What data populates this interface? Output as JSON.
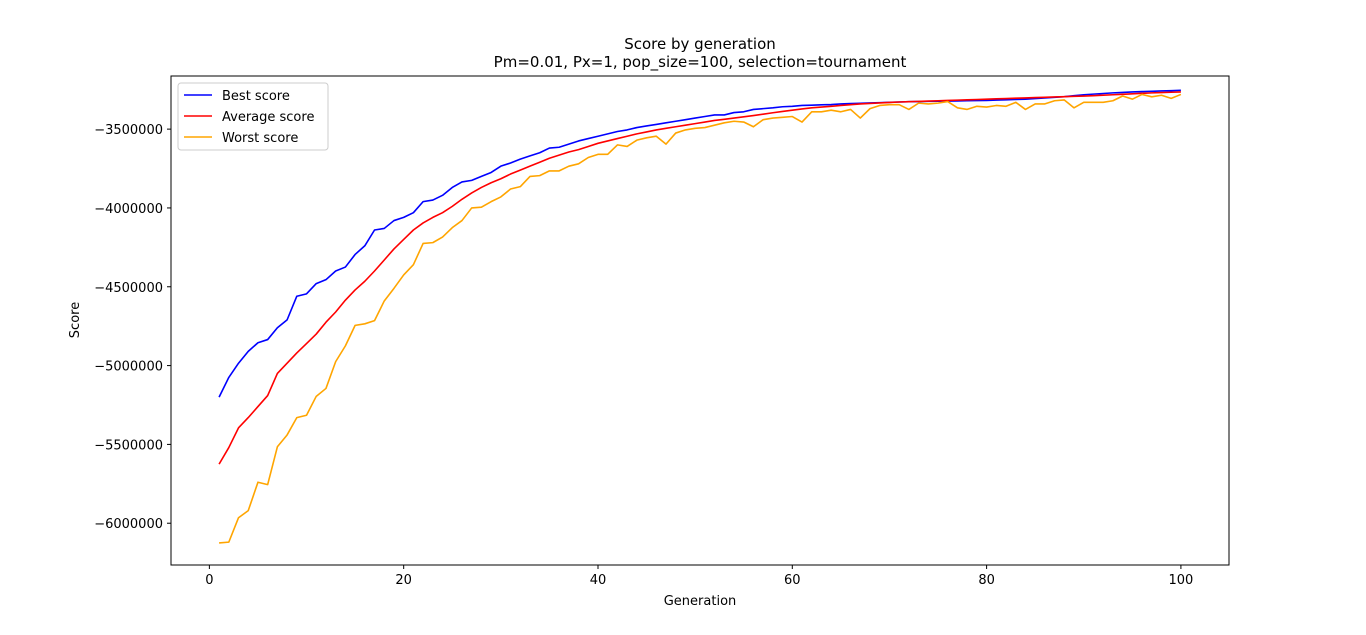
{
  "chart_data": {
    "type": "line",
    "title": "Score by generation",
    "subtitle": "Pm=0.01, Px=1, pop_size=100, selection=tournament",
    "xlabel": "Generation",
    "ylabel": "Score",
    "xlim": [
      -3.95,
      104.95
    ],
    "ylim": [
      -6265000,
      -3163000
    ],
    "xticks": [
      0,
      20,
      40,
      60,
      80,
      100
    ],
    "xtick_labels": [
      "0",
      "20",
      "40",
      "60",
      "80",
      "100"
    ],
    "yticks": [
      -6000000,
      -5500000,
      -5000000,
      -4500000,
      -4000000,
      -3500000
    ],
    "ytick_labels": [
      "−6000000",
      "−5500000",
      "−5000000",
      "−4500000",
      "−4000000",
      "−3500000"
    ],
    "grid": false,
    "legend_position": "top-left",
    "x_start": 1,
    "series": [
      {
        "name": "Best score",
        "color": "#0000ff",
        "values": [
          -5200000,
          -5075000,
          -4985000,
          -4910000,
          -4855000,
          -4835000,
          -4760000,
          -4710000,
          -4560000,
          -4545000,
          -4480000,
          -4455000,
          -4400000,
          -4375000,
          -4295000,
          -4240000,
          -4140000,
          -4130000,
          -4080000,
          -4060000,
          -4030000,
          -3960000,
          -3950000,
          -3920000,
          -3870000,
          -3835000,
          -3825000,
          -3800000,
          -3775000,
          -3735000,
          -3715000,
          -3690000,
          -3670000,
          -3650000,
          -3620000,
          -3615000,
          -3595000,
          -3575000,
          -3560000,
          -3545000,
          -3530000,
          -3515000,
          -3505000,
          -3490000,
          -3480000,
          -3470000,
          -3460000,
          -3450000,
          -3440000,
          -3430000,
          -3420000,
          -3410000,
          -3410000,
          -3395000,
          -3390000,
          -3375000,
          -3370000,
          -3365000,
          -3358000,
          -3355000,
          -3350000,
          -3348000,
          -3346000,
          -3344000,
          -3340000,
          -3338000,
          -3336000,
          -3334000,
          -3332000,
          -3330000,
          -3328000,
          -3326000,
          -3325000,
          -3324000,
          -3323000,
          -3322000,
          -3321000,
          -3320000,
          -3319000,
          -3318000,
          -3316000,
          -3314000,
          -3312000,
          -3310000,
          -3306000,
          -3302000,
          -3298000,
          -3294000,
          -3288000,
          -3282000,
          -3278000,
          -3274000,
          -3270000,
          -3267000,
          -3264000,
          -3262000,
          -3260000,
          -3258000,
          -3256000,
          -3254000
        ]
      },
      {
        "name": "Average score",
        "color": "#ff0000",
        "values": [
          -5625000,
          -5520000,
          -5395000,
          -5330000,
          -5260000,
          -5190000,
          -5050000,
          -4985000,
          -4920000,
          -4860000,
          -4800000,
          -4725000,
          -4660000,
          -4585000,
          -4520000,
          -4465000,
          -4400000,
          -4330000,
          -4260000,
          -4200000,
          -4140000,
          -4095000,
          -4060000,
          -4030000,
          -3990000,
          -3945000,
          -3905000,
          -3870000,
          -3840000,
          -3815000,
          -3785000,
          -3760000,
          -3735000,
          -3710000,
          -3685000,
          -3665000,
          -3645000,
          -3630000,
          -3610000,
          -3590000,
          -3575000,
          -3560000,
          -3545000,
          -3530000,
          -3518000,
          -3505000,
          -3495000,
          -3485000,
          -3475000,
          -3465000,
          -3455000,
          -3445000,
          -3438000,
          -3430000,
          -3422000,
          -3414000,
          -3405000,
          -3396000,
          -3388000,
          -3380000,
          -3372000,
          -3365000,
          -3360000,
          -3355000,
          -3350000,
          -3345000,
          -3340000,
          -3337000,
          -3334000,
          -3331000,
          -3328000,
          -3326000,
          -3324000,
          -3322000,
          -3320000,
          -3318000,
          -3316000,
          -3314000,
          -3312000,
          -3310000,
          -3308000,
          -3306000,
          -3304000,
          -3302000,
          -3300000,
          -3298000,
          -3296000,
          -3294000,
          -3292000,
          -3290000,
          -3288000,
          -3285000,
          -3282000,
          -3279000,
          -3276000,
          -3273000,
          -3270000,
          -3268000,
          -3266000,
          -3264000
        ]
      },
      {
        "name": "Worst score",
        "color": "#ffa500",
        "values": [
          -6125000,
          -6120000,
          -5965000,
          -5920000,
          -5740000,
          -5755000,
          -5515000,
          -5440000,
          -5330000,
          -5315000,
          -5195000,
          -5145000,
          -4975000,
          -4875000,
          -4745000,
          -4735000,
          -4715000,
          -4590000,
          -4510000,
          -4425000,
          -4360000,
          -4225000,
          -4220000,
          -4185000,
          -4125000,
          -4080000,
          -4000000,
          -3995000,
          -3960000,
          -3930000,
          -3880000,
          -3865000,
          -3800000,
          -3795000,
          -3765000,
          -3765000,
          -3735000,
          -3720000,
          -3680000,
          -3660000,
          -3660000,
          -3600000,
          -3610000,
          -3570000,
          -3555000,
          -3545000,
          -3595000,
          -3525000,
          -3505000,
          -3495000,
          -3490000,
          -3475000,
          -3460000,
          -3450000,
          -3455000,
          -3485000,
          -3440000,
          -3430000,
          -3425000,
          -3420000,
          -3455000,
          -3390000,
          -3390000,
          -3380000,
          -3390000,
          -3375000,
          -3430000,
          -3370000,
          -3350000,
          -3345000,
          -3345000,
          -3375000,
          -3335000,
          -3340000,
          -3335000,
          -3325000,
          -3365000,
          -3375000,
          -3355000,
          -3360000,
          -3350000,
          -3355000,
          -3330000,
          -3375000,
          -3340000,
          -3340000,
          -3320000,
          -3315000,
          -3365000,
          -3330000,
          -3330000,
          -3330000,
          -3320000,
          -3290000,
          -3310000,
          -3280000,
          -3295000,
          -3285000,
          -3305000,
          -3280000
        ]
      }
    ]
  }
}
